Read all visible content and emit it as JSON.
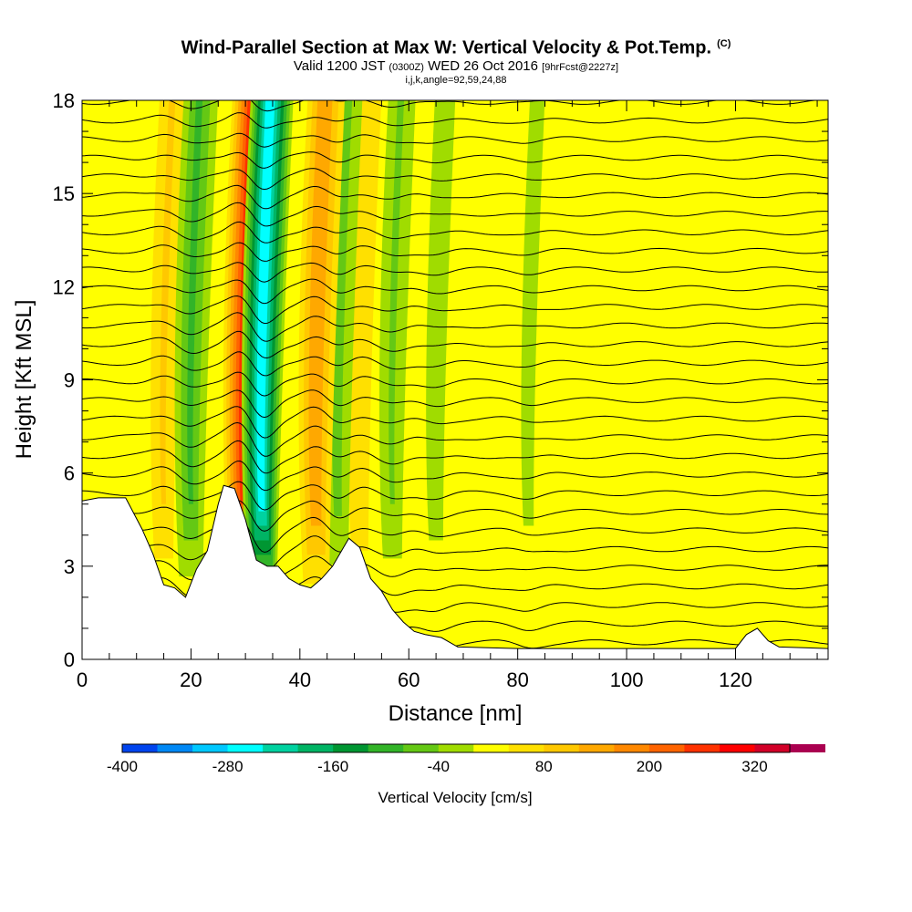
{
  "title": {
    "main": "Wind-Parallel Section at Max W: Vertical Velocity & Pot.Temp.",
    "copyright": "(C)",
    "valid_prefix": "Valid 1200 JST",
    "valid_utc": "(0300Z)",
    "valid_date": "WED 26 Oct 2016",
    "forecast_tag": "[9hrFcst@2227z]",
    "indices": "i,j,k,angle=92,59,24,88"
  },
  "chart_data": {
    "type": "heatmap",
    "xlabel": "Distance [nm]",
    "ylabel": "Height [Kft MSL]",
    "xlim": [
      0,
      137
    ],
    "ylim": [
      0,
      18
    ],
    "x_ticks": [
      0,
      20,
      40,
      60,
      80,
      100,
      120
    ],
    "y_ticks": [
      0,
      3,
      6,
      9,
      12,
      15,
      18
    ],
    "colorbar": {
      "label": "Vertical Velocity [cm/s]",
      "min": -400,
      "max": 360,
      "step": 40,
      "tick_values": [
        -400,
        -280,
        -160,
        -40,
        80,
        200,
        320
      ],
      "tick_labels": [
        "-400",
        "-280",
        "-160",
        "-40",
        "80",
        "200",
        "320"
      ],
      "colors": [
        "#0000e6",
        "#0044ee",
        "#0088f5",
        "#00c8ff",
        "#00ffff",
        "#00d2a0",
        "#00b464",
        "#009632",
        "#32b428",
        "#64c814",
        "#a0dc00",
        "#ffff00",
        "#ffe000",
        "#ffc800",
        "#ffa800",
        "#ff8800",
        "#ff6400",
        "#ff3200",
        "#ff0000",
        "#d20028",
        "#aa0050",
        "#820078",
        "#5a0096"
      ]
    },
    "terrain": [
      [
        0,
        5.1
      ],
      [
        3,
        5.2
      ],
      [
        8,
        5.2
      ],
      [
        11,
        4.2
      ],
      [
        13,
        3.4
      ],
      [
        15,
        2.4
      ],
      [
        17,
        2.3
      ],
      [
        19,
        2.0
      ],
      [
        21,
        2.9
      ],
      [
        23,
        3.5
      ],
      [
        25,
        5.0
      ],
      [
        26,
        5.6
      ],
      [
        28,
        5.5
      ],
      [
        30,
        4.5
      ],
      [
        32,
        3.2
      ],
      [
        34,
        3.0
      ],
      [
        36,
        3.0
      ],
      [
        38,
        2.6
      ],
      [
        40,
        2.4
      ],
      [
        42,
        2.3
      ],
      [
        44,
        2.6
      ],
      [
        46,
        3.0
      ],
      [
        48,
        3.6
      ],
      [
        49,
        3.9
      ],
      [
        51,
        3.6
      ],
      [
        53,
        2.6
      ],
      [
        55,
        2.2
      ],
      [
        57,
        1.6
      ],
      [
        59,
        1.2
      ],
      [
        61,
        0.9
      ],
      [
        63,
        0.8
      ],
      [
        66,
        0.7
      ],
      [
        69,
        0.4
      ],
      [
        80,
        0.35
      ],
      [
        100,
        0.35
      ],
      [
        120,
        0.35
      ],
      [
        122,
        0.8
      ],
      [
        124,
        1.0
      ],
      [
        126,
        0.6
      ],
      [
        128,
        0.4
      ],
      [
        137,
        0.35
      ]
    ],
    "features": [
      {
        "name": "updraft",
        "x": 29.5,
        "w_cm_s": 240
      },
      {
        "name": "downdraft",
        "x": 33,
        "w_cm_s": -300
      },
      {
        "name": "updraft",
        "x": 43,
        "w_cm_s": 150
      },
      {
        "name": "downdraft",
        "x": 20,
        "w_cm_s": -120
      },
      {
        "name": "updraft",
        "x": 15,
        "w_cm_s": 80
      },
      {
        "name": "downdraft",
        "x": 47,
        "w_cm_s": -90
      },
      {
        "name": "updraft",
        "x": 51,
        "w_cm_s": 70
      },
      {
        "name": "downdraft",
        "x": 57,
        "w_cm_s": -80
      },
      {
        "name": "downdraft",
        "x": 65,
        "w_cm_s": -60
      },
      {
        "name": "downdraft",
        "x": 82,
        "w_cm_s": -50
      }
    ]
  }
}
